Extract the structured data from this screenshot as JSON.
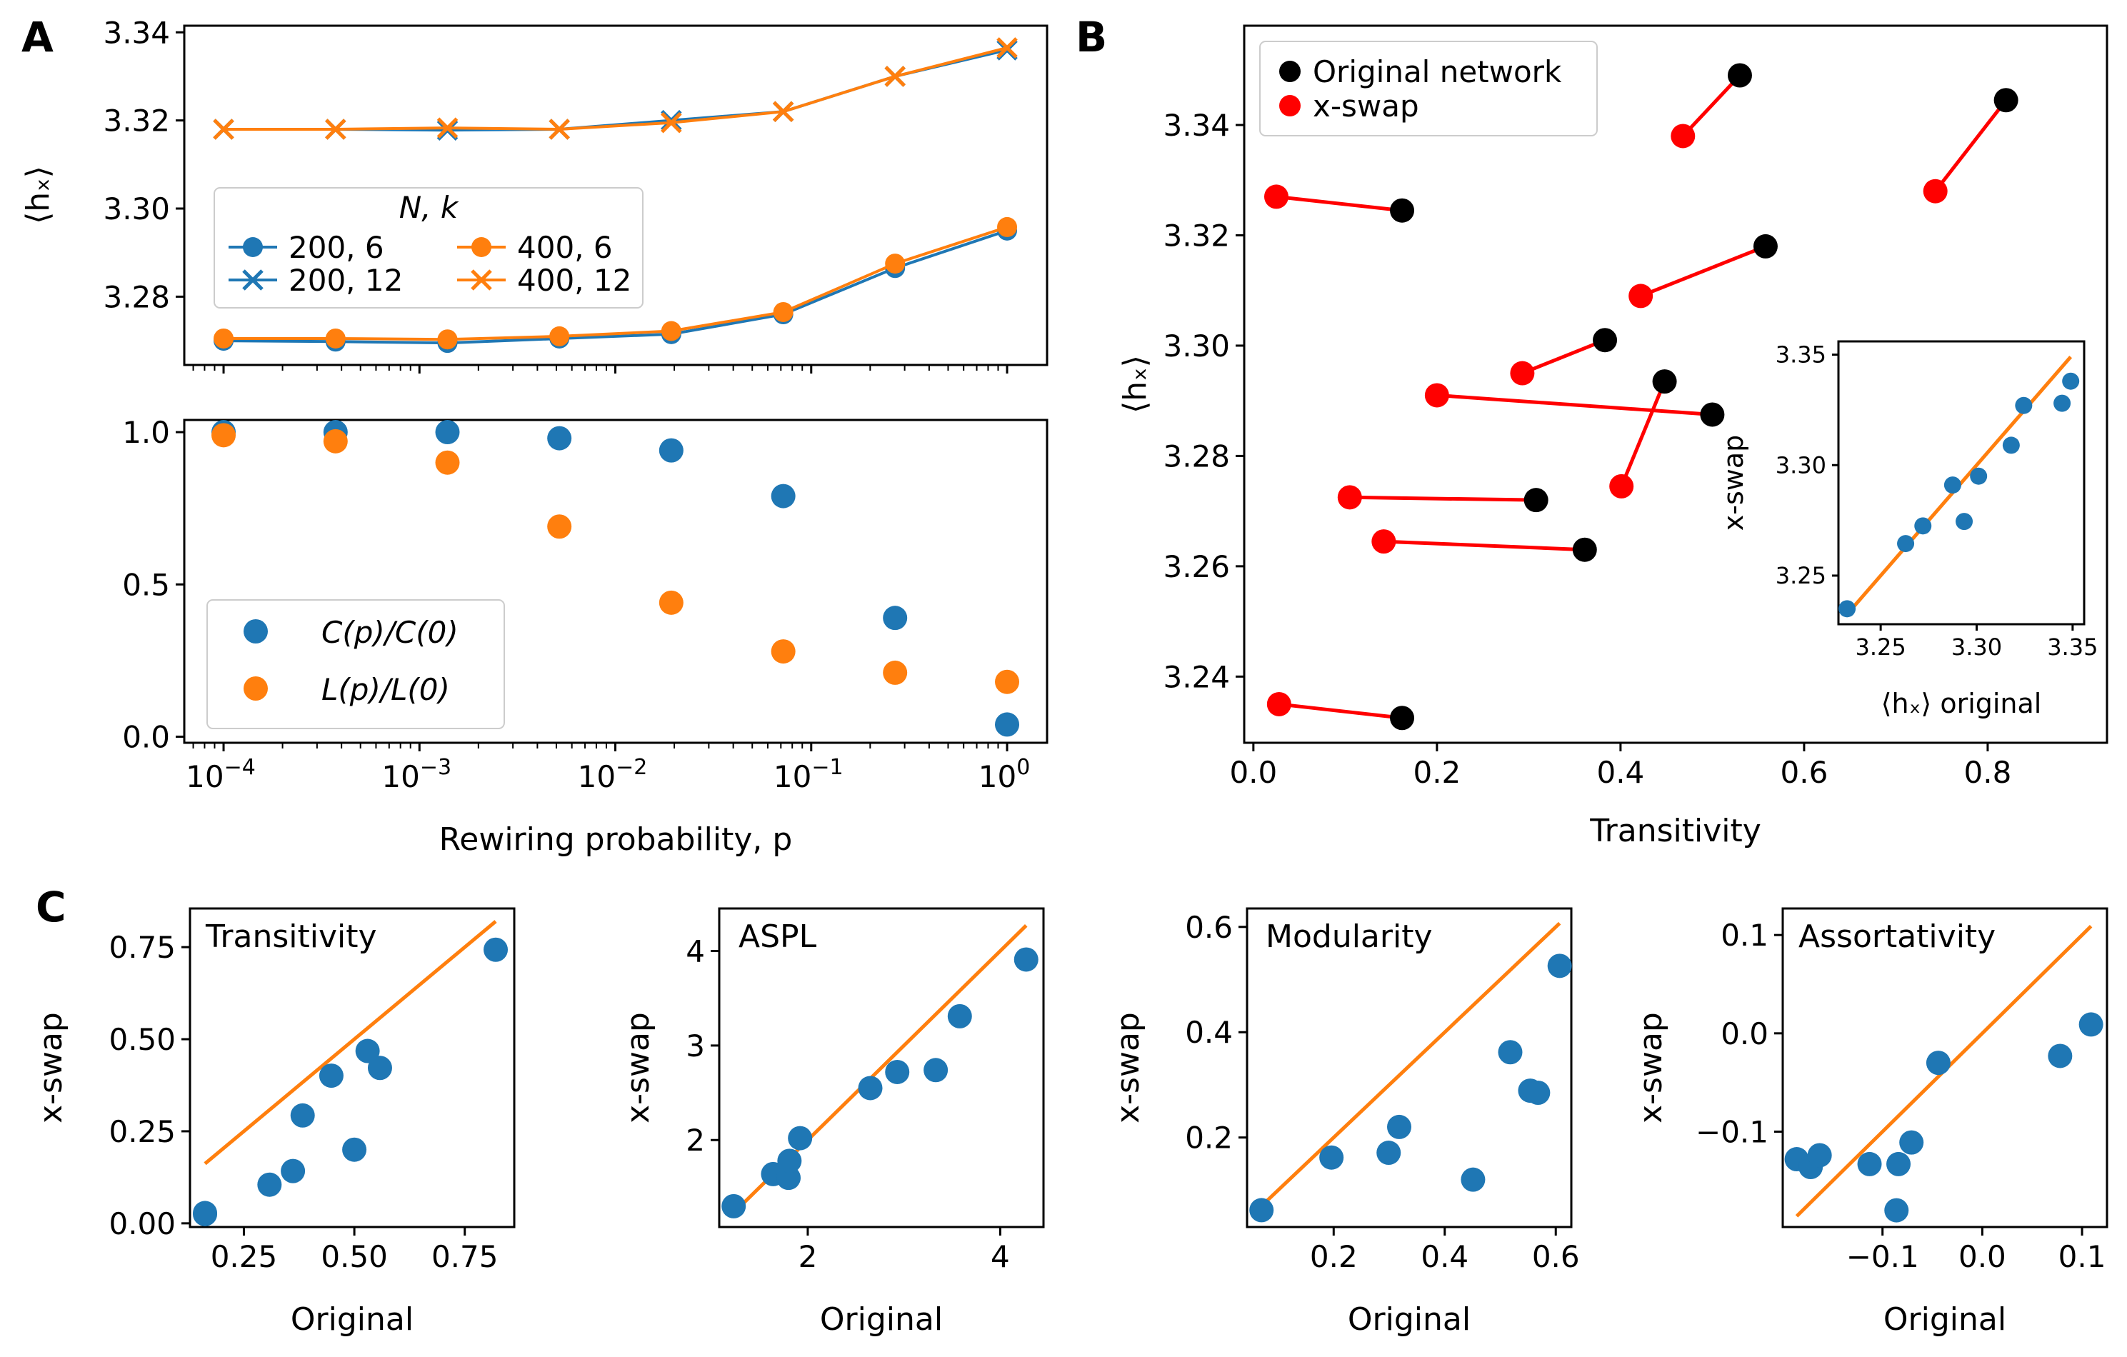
{
  "colors": {
    "blue": "#1f77b4",
    "orange": "#ff7f0e",
    "black": "#000000",
    "red": "#ff0000"
  },
  "panels": [
    {
      "label": "A",
      "subplots": [
        {
          "ylabel": "⟨hₓ⟩",
          "legend_title": "N, k"
        },
        {
          "xlabel": "Rewiring probability, p"
        }
      ]
    },
    {
      "label": "B",
      "xlabel": "Transitivity",
      "ylabel": "⟨hₓ⟩",
      "inset": {
        "xlabel": "⟨hₓ⟩ original",
        "ylabel": "x-swap"
      }
    },
    {
      "label": "C",
      "subplots": [
        {
          "title": "Transitivity",
          "xlabel": "Original",
          "ylabel": "x-swap"
        },
        {
          "title": "ASPL",
          "xlabel": "Original",
          "ylabel": "x-swap"
        },
        {
          "title": "Modularity",
          "xlabel": "Original",
          "ylabel": "x-swap"
        },
        {
          "title": "Assortativity",
          "xlabel": "Original",
          "ylabel": "x-swap"
        }
      ]
    }
  ],
  "chart_data": [
    {
      "id": "A_top",
      "type": "line",
      "xscale": "log",
      "x": [
        0.0001,
        0.000373,
        0.00139,
        0.00518,
        0.0193,
        0.072,
        0.268,
        1.0
      ],
      "xlim": [
        6.3e-05,
        1.6
      ],
      "ylim": [
        3.2645,
        3.3415
      ],
      "yticks": [
        3.28,
        3.3,
        3.32,
        3.34
      ],
      "ytick_labels": [
        "3.28",
        "3.30",
        "3.32",
        "3.34"
      ],
      "ylabel": "⟨hₓ⟩",
      "legend": {
        "title": "N, k",
        "position": "center-left",
        "entries": [
          "200, 6",
          "400, 6",
          "200, 12",
          "400, 12"
        ]
      },
      "series": [
        {
          "name": "200, 6",
          "color": "#1f77b4",
          "marker": "o",
          "values": [
            3.27,
            3.2698,
            3.2695,
            3.2705,
            3.2715,
            3.276,
            3.2865,
            3.295
          ]
        },
        {
          "name": "400, 6",
          "color": "#ff7f0e",
          "marker": "o",
          "values": [
            3.2705,
            3.2705,
            3.2703,
            3.271,
            3.2722,
            3.2765,
            3.2875,
            3.2958
          ]
        },
        {
          "name": "200, 12",
          "color": "#1f77b4",
          "marker": "x",
          "values": [
            3.318,
            3.318,
            3.3178,
            3.318,
            3.32,
            3.322,
            3.33,
            3.336
          ]
        },
        {
          "name": "400, 12",
          "color": "#ff7f0e",
          "marker": "x",
          "values": [
            3.318,
            3.318,
            3.3183,
            3.318,
            3.3195,
            3.322,
            3.33,
            3.3365
          ]
        }
      ]
    },
    {
      "id": "A_bottom",
      "type": "scatter",
      "xscale": "log",
      "x": [
        0.0001,
        0.000373,
        0.00139,
        0.00518,
        0.0193,
        0.072,
        0.268,
        1.0
      ],
      "xlim": [
        6.3e-05,
        1.6
      ],
      "ylim": [
        -0.02,
        1.04
      ],
      "xticks": [
        0.0001,
        0.001,
        0.01,
        0.1,
        1
      ],
      "xtick_labels": [
        [
          "10",
          "−4"
        ],
        [
          "10",
          "−3"
        ],
        [
          "10",
          "−2"
        ],
        [
          "10",
          "−1"
        ],
        [
          "10",
          "0"
        ]
      ],
      "yticks": [
        0.0,
        0.5,
        1.0
      ],
      "ytick_labels": [
        "0.0",
        "0.5",
        "1.0"
      ],
      "xlabel": "Rewiring probability, p",
      "legend": {
        "position": "lower-left",
        "entries": [
          "C(p)/C(0)",
          "L(p)/L(0)"
        ]
      },
      "series": [
        {
          "name": "C(p)/C(0)",
          "color": "#1f77b4",
          "values": [
            1.0,
            1.0,
            1.0,
            0.98,
            0.94,
            0.79,
            0.39,
            0.04
          ]
        },
        {
          "name": "L(p)/L(0)",
          "color": "#ff7f0e",
          "values": [
            0.99,
            0.97,
            0.9,
            0.69,
            0.44,
            0.28,
            0.21,
            0.18
          ]
        }
      ]
    },
    {
      "id": "B",
      "type": "scatter",
      "xlim": [
        -0.01,
        0.93
      ],
      "ylim": [
        3.228,
        3.358
      ],
      "xticks": [
        0.0,
        0.2,
        0.4,
        0.6,
        0.8
      ],
      "xtick_labels": [
        "0.0",
        "0.2",
        "0.4",
        "0.6",
        "0.8"
      ],
      "yticks": [
        3.24,
        3.26,
        3.28,
        3.3,
        3.32,
        3.34
      ],
      "ytick_labels": [
        "3.24",
        "3.26",
        "3.28",
        "3.30",
        "3.32",
        "3.34"
      ],
      "xlabel": "Transitivity",
      "ylabel": "⟨hₓ⟩",
      "legend": {
        "position": "top-left",
        "entries": [
          "Original network",
          "x-swap"
        ]
      },
      "series": [
        {
          "name": "Original network",
          "color": "#000000",
          "x": [
            0.53,
            0.82,
            0.162,
            0.558,
            0.383,
            0.448,
            0.5,
            0.308,
            0.361,
            0.162
          ],
          "y": [
            3.349,
            3.3445,
            3.3245,
            3.318,
            3.301,
            3.2935,
            3.2875,
            3.272,
            3.263,
            3.2325
          ]
        },
        {
          "name": "x-swap",
          "color": "#ff0000",
          "x": [
            0.468,
            0.743,
            0.025,
            0.422,
            0.293,
            0.401,
            0.2,
            0.105,
            0.142,
            0.028
          ],
          "y": [
            3.338,
            3.328,
            3.327,
            3.309,
            3.295,
            3.2745,
            3.291,
            3.2725,
            3.2645,
            3.235
          ]
        }
      ],
      "inset": {
        "type": "scatter",
        "xlim": [
          3.228,
          3.356
        ],
        "ylim": [
          3.228,
          3.356
        ],
        "xticks": [
          3.25,
          3.3,
          3.35
        ],
        "xtick_labels": [
          "3.25",
          "3.30",
          "3.35"
        ],
        "yticks": [
          3.25,
          3.3,
          3.35
        ],
        "ytick_labels": [
          "3.25",
          "3.30",
          "3.35"
        ],
        "xlabel": "⟨hₓ⟩ original",
        "ylabel": "x-swap",
        "points": {
          "x": [
            3.2325,
            3.263,
            3.272,
            3.2875,
            3.2935,
            3.301,
            3.318,
            3.3245,
            3.3445,
            3.349
          ],
          "y": [
            3.235,
            3.2645,
            3.2725,
            3.291,
            3.2745,
            3.295,
            3.309,
            3.327,
            3.328,
            3.338
          ]
        },
        "identity_line": [
          3.2325,
          3.349
        ]
      }
    },
    {
      "id": "C1",
      "type": "scatter",
      "title": "Transitivity",
      "xlim": [
        0.128,
        0.862
      ],
      "ylim": [
        -0.01,
        0.855
      ],
      "xticks": [
        0.25,
        0.5,
        0.75
      ],
      "xtick_labels": [
        "0.25",
        "0.50",
        "0.75"
      ],
      "yticks": [
        0.0,
        0.25,
        0.5,
        0.75
      ],
      "ytick_labels": [
        "0.00",
        "0.25",
        "0.50",
        "0.75"
      ],
      "xlabel": "Original",
      "ylabel": "x-swap",
      "points": {
        "x": [
          0.162,
          0.162,
          0.308,
          0.361,
          0.383,
          0.448,
          0.5,
          0.53,
          0.558,
          0.82
        ],
        "y": [
          0.025,
          0.028,
          0.105,
          0.142,
          0.293,
          0.401,
          0.2,
          0.468,
          0.422,
          0.743
        ]
      },
      "identity_line": [
        0.162,
        0.82
      ]
    },
    {
      "id": "C2",
      "type": "scatter",
      "title": "ASPL",
      "xlim": [
        1.08,
        4.45
      ],
      "ylim": [
        1.08,
        4.45
      ],
      "xticks": [
        2,
        4
      ],
      "xtick_labels": [
        "2",
        "4"
      ],
      "yticks": [
        2,
        3,
        4
      ],
      "ytick_labels": [
        "2",
        "3",
        "4"
      ],
      "xlabel": "Original",
      "ylabel": "x-swap",
      "points": {
        "x": [
          1.23,
          1.64,
          1.8,
          1.81,
          1.92,
          2.65,
          2.93,
          3.33,
          3.58,
          4.27
        ],
        "y": [
          1.3,
          1.64,
          1.6,
          1.78,
          2.02,
          2.55,
          2.72,
          2.74,
          3.31,
          3.91
        ]
      },
      "identity_line": [
        1.23,
        4.27
      ]
    },
    {
      "id": "C3",
      "type": "scatter",
      "title": "Modularity",
      "xlim": [
        0.044,
        0.628
      ],
      "ylim": [
        0.03,
        0.635
      ],
      "xticks": [
        0.2,
        0.4,
        0.6
      ],
      "xtick_labels": [
        "0.2",
        "0.4",
        "0.6"
      ],
      "yticks": [
        0.2,
        0.4,
        0.6
      ],
      "ytick_labels": [
        "0.2",
        "0.4",
        "0.6"
      ],
      "xlabel": "Original",
      "ylabel": "x-swap",
      "points": {
        "x": [
          0.07,
          0.196,
          0.299,
          0.318,
          0.451,
          0.518,
          0.554,
          0.568,
          0.607
        ],
        "y": [
          0.062,
          0.162,
          0.171,
          0.22,
          0.12,
          0.362,
          0.289,
          0.285,
          0.526
        ]
      },
      "identity_line": [
        0.07,
        0.607
      ]
    },
    {
      "id": "C4",
      "type": "scatter",
      "title": "Assortativity",
      "xlim": [
        -0.2,
        0.125
      ],
      "ylim": [
        -0.197,
        0.127
      ],
      "xticks": [
        -0.1,
        0.0,
        0.1
      ],
      "xtick_labels": [
        "−0.1",
        "0.0",
        "0.1"
      ],
      "yticks": [
        -0.1,
        0.0,
        0.1
      ],
      "ytick_labels": [
        "−0.1",
        "0.0",
        "0.1"
      ],
      "xlabel": "Original",
      "ylabel": "x-swap",
      "points": {
        "x": [
          -0.186,
          -0.172,
          -0.163,
          -0.113,
          -0.086,
          -0.084,
          -0.071,
          -0.044,
          0.078,
          0.109
        ],
        "y": [
          -0.128,
          -0.136,
          -0.124,
          -0.133,
          -0.18,
          -0.133,
          -0.111,
          -0.03,
          -0.023,
          0.009
        ]
      },
      "identity_line": [
        -0.186,
        0.109
      ]
    }
  ]
}
